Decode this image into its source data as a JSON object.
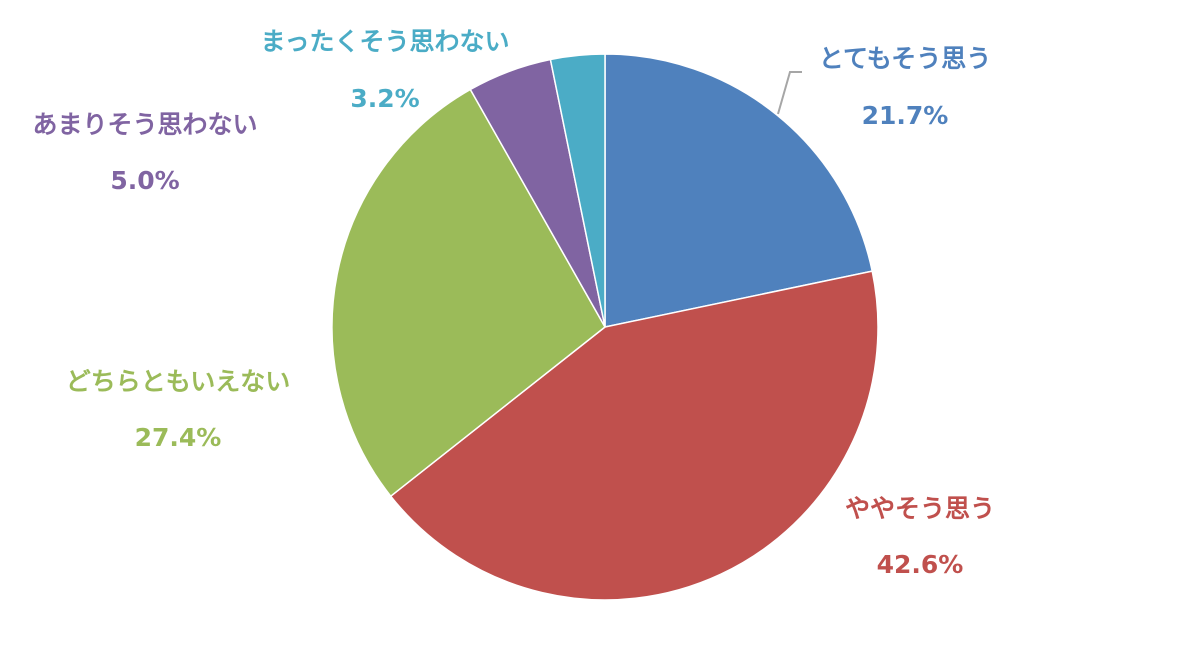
{
  "chart_data": {
    "type": "pie",
    "categories": [
      "とてもそう思う",
      "ややそう思う",
      "どちらともいえない",
      "あまりそう思わない",
      "まったくそう思わない"
    ],
    "values": [
      21.7,
      42.6,
      27.4,
      5.0,
      3.2
    ],
    "value_labels": [
      "21.7%",
      "42.6%",
      "27.4%",
      "5.0%",
      "3.2%"
    ],
    "colors": [
      "#4f81bd",
      "#c0504d",
      "#9bbb59",
      "#8064a2",
      "#4bacc6"
    ]
  }
}
